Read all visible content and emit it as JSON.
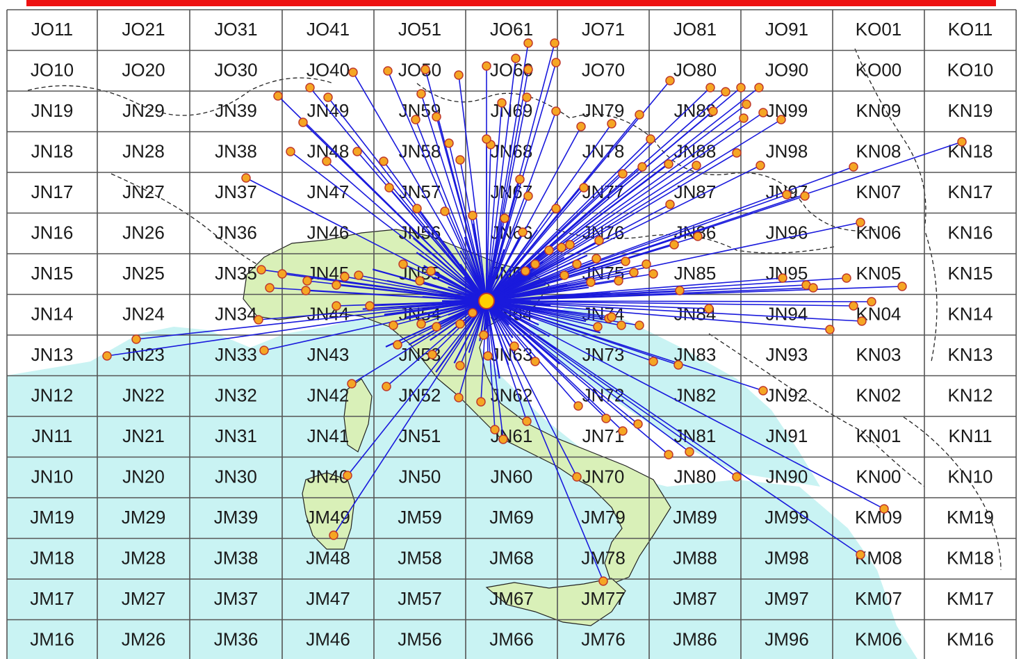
{
  "map": {
    "colors": {
      "sea": "#c9f3f3",
      "land": "#ffffff",
      "italy": "#d9f0b8",
      "grid": "#555555",
      "border": "#222222",
      "link": "#1a1adc",
      "station_fill": "#f5a623",
      "station_stroke": "#c0392b",
      "home_fill": "#ffd000",
      "top_bar": "#ee1111"
    },
    "home_station": "JN63",
    "grid_rows": [
      [
        "JO11",
        "JO21",
        "JO31",
        "JO41",
        "JO51",
        "JO61",
        "JO71",
        "JO81",
        "JO91",
        "KO01",
        "KO11"
      ],
      [
        "JO10",
        "JO20",
        "JO30",
        "JO40",
        "JO50",
        "JO60",
        "JO70",
        "JO80",
        "JO90",
        "KO00",
        "KO10"
      ],
      [
        "JN19",
        "JN29",
        "JN39",
        "JN49",
        "JN59",
        "JN69",
        "JN79",
        "JN89",
        "JN99",
        "KN09",
        "KN19"
      ],
      [
        "JN18",
        "JN28",
        "JN38",
        "JN48",
        "JN58",
        "JN68",
        "JN78",
        "JN88",
        "JN98",
        "KN08",
        "KN18"
      ],
      [
        "JN17",
        "JN27",
        "JN37",
        "JN47",
        "JN57",
        "JN67",
        "JN77",
        "JN87",
        "JN97",
        "KN07",
        "KN17"
      ],
      [
        "JN16",
        "JN26",
        "JN36",
        "JN46",
        "JN56",
        "JN66",
        "JN76",
        "JN86",
        "JN96",
        "KN06",
        "KN16"
      ],
      [
        "JN15",
        "JN25",
        "JN35",
        "JN45",
        "JN55",
        "JN65",
        "JN75",
        "JN85",
        "JN95",
        "KN05",
        "KN15"
      ],
      [
        "JN14",
        "JN24",
        "JN34",
        "JN44",
        "JN54",
        "JN64",
        "JN74",
        "JN84",
        "JN94",
        "KN04",
        "KN14"
      ],
      [
        "JN13",
        "JN23",
        "JN33",
        "JN43",
        "JN53",
        "JN63",
        "JN73",
        "JN83",
        "JN93",
        "KN03",
        "KN13"
      ],
      [
        "JN12",
        "JN22",
        "JN32",
        "JN42",
        "JN52",
        "JN62",
        "JN72",
        "JN82",
        "JN92",
        "KN02",
        "KN12"
      ],
      [
        "JN11",
        "JN21",
        "JN31",
        "JN41",
        "JN51",
        "JN61",
        "JN71",
        "JN81",
        "JN91",
        "KN01",
        "KN11"
      ],
      [
        "JN10",
        "JN20",
        "JN30",
        "JN40",
        "JN50",
        "JN60",
        "JN70",
        "JN80",
        "JN90",
        "KN00",
        "KN10"
      ],
      [
        "JM19",
        "JM29",
        "JM39",
        "JM49",
        "JM59",
        "JM69",
        "JM79",
        "JM89",
        "JM99",
        "KM09",
        "KM19"
      ],
      [
        "JM18",
        "JM28",
        "JM38",
        "JM48",
        "JM58",
        "JM68",
        "JM78",
        "JM88",
        "JM98",
        "KM08",
        "KM18"
      ],
      [
        "JM17",
        "JM27",
        "JM37",
        "JM47",
        "JM57",
        "JM67",
        "JM77",
        "JM87",
        "JM97",
        "KM07",
        "KM17"
      ],
      [
        "JM16",
        "JM26",
        "JM36",
        "JM46",
        "JM56",
        "JM66",
        "JM76",
        "JM86",
        "JM96",
        "KM06",
        "KM16"
      ]
    ]
  }
}
